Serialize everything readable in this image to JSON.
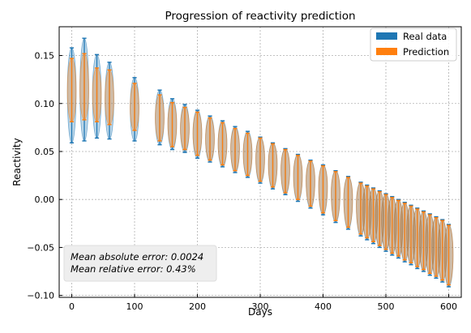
{
  "chart_data": {
    "type": "violin",
    "title": "Progression of reactivity prediction",
    "xlabel": "Days",
    "ylabel": "Reactivity",
    "xlim": [
      -20,
      620
    ],
    "ylim": [
      -0.102,
      0.18
    ],
    "xticks": [
      0,
      100,
      200,
      300,
      400,
      500,
      600
    ],
    "xtick_labels": [
      "0",
      "100",
      "200",
      "300",
      "400",
      "500",
      "600"
    ],
    "yticks": [
      -0.1,
      -0.05,
      0.0,
      0.05,
      0.1,
      0.15
    ],
    "ytick_labels": [
      "−0.10",
      "−0.05",
      "0.00",
      "0.05",
      "0.10",
      "0.15"
    ],
    "grid": true,
    "legend_position": "top-right",
    "annotation": [
      "Mean absolute error: 0.0024",
      "Mean relative error: 0.43%"
    ],
    "series": [
      {
        "name": "Real data",
        "color": "#1f77b4",
        "x": [
          0,
          20,
          40,
          60,
          100,
          140,
          160,
          180,
          200,
          220,
          240,
          260,
          280,
          300,
          320,
          340,
          360,
          380,
          400,
          420,
          440,
          460,
          470,
          480,
          490,
          500,
          510,
          520,
          530,
          540,
          550,
          560,
          570,
          580,
          590,
          600
        ],
        "max": [
          0.158,
          0.168,
          0.151,
          0.143,
          0.127,
          0.114,
          0.105,
          0.099,
          0.093,
          0.087,
          0.082,
          0.076,
          0.071,
          0.065,
          0.059,
          0.053,
          0.047,
          0.041,
          0.036,
          0.03,
          0.024,
          0.018,
          0.015,
          0.012,
          0.009,
          0.006,
          0.003,
          0.0,
          -0.003,
          -0.006,
          -0.009,
          -0.012,
          -0.015,
          -0.018,
          -0.021,
          -0.026
        ],
        "mean": [
          0.113,
          0.114,
          0.11,
          0.104,
          0.095,
          0.085,
          0.079,
          0.074,
          0.069,
          0.063,
          0.058,
          0.053,
          0.048,
          0.043,
          0.037,
          0.031,
          0.025,
          0.02,
          0.014,
          0.007,
          0.001,
          -0.006,
          -0.01,
          -0.014,
          -0.017,
          -0.02,
          -0.024,
          -0.027,
          -0.031,
          -0.034,
          -0.038,
          -0.041,
          -0.045,
          -0.048,
          -0.052,
          -0.058
        ],
        "min": [
          0.059,
          0.061,
          0.064,
          0.063,
          0.061,
          0.057,
          0.052,
          0.049,
          0.043,
          0.039,
          0.034,
          0.028,
          0.023,
          0.017,
          0.011,
          0.005,
          -0.002,
          -0.009,
          -0.016,
          -0.024,
          -0.031,
          -0.038,
          -0.042,
          -0.046,
          -0.05,
          -0.054,
          -0.058,
          -0.061,
          -0.065,
          -0.068,
          -0.072,
          -0.075,
          -0.079,
          -0.082,
          -0.086,
          -0.091
        ]
      },
      {
        "name": "Prediction",
        "color": "#ff7f0e",
        "x": [
          0,
          20,
          40,
          60,
          100,
          140,
          160,
          180,
          200,
          220,
          240,
          260,
          280,
          300,
          320,
          340,
          360,
          380,
          400,
          420,
          440,
          460,
          470,
          480,
          490,
          500,
          510,
          520,
          530,
          540,
          550,
          560,
          570,
          580,
          590,
          600
        ],
        "max": [
          0.147,
          0.152,
          0.137,
          0.135,
          0.121,
          0.109,
          0.101,
          0.096,
          0.091,
          0.085,
          0.08,
          0.074,
          0.069,
          0.064,
          0.058,
          0.052,
          0.046,
          0.04,
          0.035,
          0.029,
          0.023,
          0.017,
          0.014,
          0.011,
          0.008,
          0.005,
          0.002,
          -0.001,
          -0.004,
          -0.007,
          -0.01,
          -0.013,
          -0.016,
          -0.019,
          -0.022,
          -0.027
        ],
        "mean": [
          0.113,
          0.114,
          0.11,
          0.104,
          0.095,
          0.085,
          0.079,
          0.074,
          0.069,
          0.063,
          0.058,
          0.053,
          0.048,
          0.043,
          0.037,
          0.031,
          0.025,
          0.02,
          0.014,
          0.007,
          0.001,
          -0.006,
          -0.01,
          -0.014,
          -0.017,
          -0.02,
          -0.024,
          -0.027,
          -0.031,
          -0.034,
          -0.038,
          -0.041,
          -0.045,
          -0.048,
          -0.052,
          -0.058
        ],
        "min": [
          0.081,
          0.083,
          0.081,
          0.078,
          0.072,
          0.061,
          0.055,
          0.052,
          0.046,
          0.041,
          0.036,
          0.03,
          0.025,
          0.019,
          0.013,
          0.007,
          0.0,
          -0.007,
          -0.014,
          -0.022,
          -0.029,
          -0.036,
          -0.04,
          -0.044,
          -0.048,
          -0.052,
          -0.056,
          -0.059,
          -0.063,
          -0.066,
          -0.07,
          -0.073,
          -0.077,
          -0.08,
          -0.084,
          -0.089
        ]
      }
    ]
  }
}
